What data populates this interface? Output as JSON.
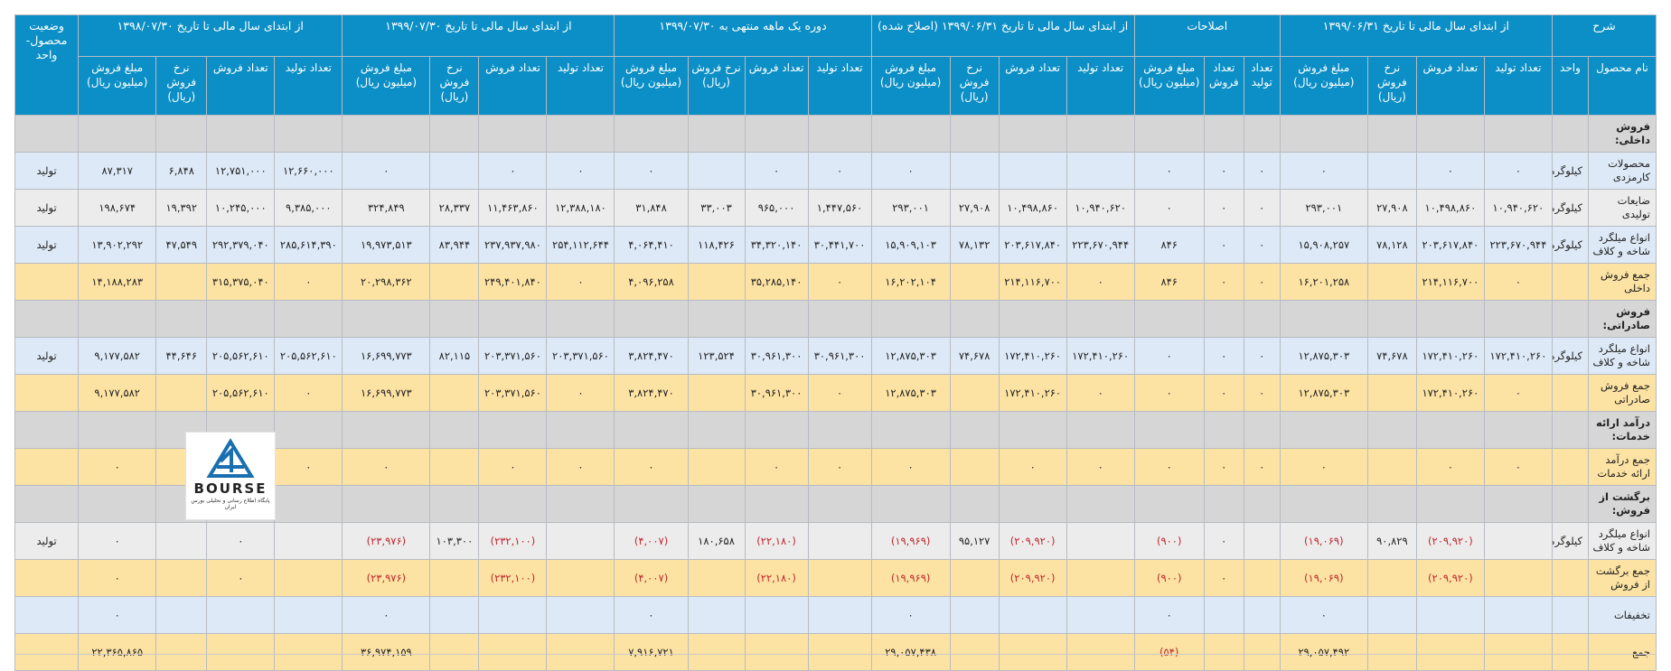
{
  "header_groups": [
    "شرح",
    "از ابتدای سال مالی تا تاریخ ۱۳۹۹/۰۶/۳۱",
    "اصلاحات",
    "از ابتدای سال مالی تا تاریخ ۱۳۹۹/۰۶/۳۱ (اصلاح شده)",
    "دوره یک ماهه منتهی به ۱۳۹۹/۰۷/۳۰",
    "از ابتدای سال مالی تا تاریخ ۱۳۹۹/۰۷/۳۰",
    "از ابتدای سال مالی تا تاریخ ۱۳۹۸/۰۷/۳۰",
    "وضعیت محصول- واحد"
  ],
  "sub_headers": [
    "نام محصول",
    "واحد",
    "تعداد تولید",
    "تعداد فروش",
    "نرخ فروش (ریال)",
    "مبلغ فروش (میلیون ریال)",
    "تعداد تولید",
    "تعداد فروش",
    "مبلغ فروش (میلیون ریال)",
    "تعداد تولید",
    "تعداد فروش",
    "نرخ فروش (ریال)",
    "مبلغ فروش (میلیون ریال)",
    "تعداد تولید",
    "تعداد فروش",
    "نرخ فروش (ریال)",
    "مبلغ فروش (میلیون ریال)",
    "تعداد تولید",
    "تعداد فروش",
    "نرخ فروش (ریال)",
    "مبلغ فروش (میلیون ریال)",
    "تعداد تولید",
    "تعداد فروش",
    "نرخ فروش (ریال)",
    "مبلغ فروش (میلیون ریال)"
  ],
  "rows": [
    {
      "style": "gray",
      "cells": [
        "فروش داخلی:",
        "",
        "",
        "",
        "",
        "",
        "",
        "",
        "",
        "",
        "",
        "",
        "",
        "",
        "",
        "",
        "",
        "",
        "",
        "",
        "",
        "",
        "",
        "",
        "",
        "",
        ""
      ]
    },
    {
      "style": "blue",
      "cells": [
        "محصولات کارمزدی",
        "کیلوگرم",
        "۰",
        "۰",
        "",
        "۰",
        "۰",
        "۰",
        "۰",
        "",
        "",
        "",
        "۰",
        "۰",
        "۰",
        "",
        "۰",
        "۰",
        "۰",
        "",
        "۰",
        "۱۲,۶۶۰,۰۰۰",
        "۱۲,۷۵۱,۰۰۰",
        "۶,۸۴۸",
        "۸۷,۳۱۷",
        "تولید"
      ]
    },
    {
      "style": "lgray",
      "cells": [
        "ضایعات تولیدی",
        "کیلوگرم",
        "۱۰,۹۴۰,۶۲۰",
        "۱۰,۴۹۸,۸۶۰",
        "۲۷,۹۰۸",
        "۲۹۳,۰۰۱",
        "۰",
        "۰",
        "۰",
        "۱۰,۹۴۰,۶۲۰",
        "۱۰,۴۹۸,۸۶۰",
        "۲۷,۹۰۸",
        "۲۹۳,۰۰۱",
        "۱,۴۴۷,۵۶۰",
        "۹۶۵,۰۰۰",
        "۳۳,۰۰۳",
        "۳۱,۸۴۸",
        "۱۲,۳۸۸,۱۸۰",
        "۱۱,۴۶۳,۸۶۰",
        "۲۸,۳۳۷",
        "۳۲۴,۸۴۹",
        "۹,۳۸۵,۰۰۰",
        "۱۰,۲۴۵,۰۰۰",
        "۱۹,۳۹۲",
        "۱۹۸,۶۷۴",
        "تولید"
      ]
    },
    {
      "style": "blue",
      "cells": [
        "انواع میلگرد شاخه و کلاف",
        "کیلوگرم",
        "۲۲۳,۶۷۰,۹۴۴",
        "۲۰۳,۶۱۷,۸۴۰",
        "۷۸,۱۲۸",
        "۱۵,۹۰۸,۲۵۷",
        "۰",
        "۰",
        "۸۴۶",
        "۲۲۳,۶۷۰,۹۴۴",
        "۲۰۳,۶۱۷,۸۴۰",
        "۷۸,۱۳۲",
        "۱۵,۹۰۹,۱۰۳",
        "۳۰,۴۴۱,۷۰۰",
        "۳۴,۳۲۰,۱۴۰",
        "۱۱۸,۴۲۶",
        "۴,۰۶۴,۴۱۰",
        "۲۵۴,۱۱۲,۶۴۴",
        "۲۳۷,۹۳۷,۹۸۰",
        "۸۳,۹۴۴",
        "۱۹,۹۷۳,۵۱۳",
        "۲۸۵,۶۱۴,۳۹۰",
        "۲۹۲,۳۷۹,۰۴۰",
        "۴۷,۵۴۹",
        "۱۳,۹۰۲,۲۹۲",
        "تولید"
      ]
    },
    {
      "style": "yellow",
      "cells": [
        "جمع فروش داخلی",
        "",
        "۰",
        "۲۱۴,۱۱۶,۷۰۰",
        "",
        "۱۶,۲۰۱,۲۵۸",
        "۰",
        "۰",
        "۸۴۶",
        "۰",
        "۲۱۴,۱۱۶,۷۰۰",
        "",
        "۱۶,۲۰۲,۱۰۴",
        "۰",
        "۳۵,۲۸۵,۱۴۰",
        "",
        "۴,۰۹۶,۲۵۸",
        "۰",
        "۲۴۹,۴۰۱,۸۴۰",
        "",
        "۲۰,۲۹۸,۳۶۲",
        "۰",
        "۳۱۵,۳۷۵,۰۴۰",
        "",
        "۱۴,۱۸۸,۲۸۳",
        ""
      ]
    },
    {
      "style": "gray",
      "cells": [
        "فروش صادراتی:",
        "",
        "",
        "",
        "",
        "",
        "",
        "",
        "",
        "",
        "",
        "",
        "",
        "",
        "",
        "",
        "",
        "",
        "",
        "",
        "",
        "",
        "",
        "",
        "",
        ""
      ]
    },
    {
      "style": "blue",
      "cells": [
        "انواع میلگرد شاخه و کلاف",
        "کیلوگرم",
        "۱۷۲,۴۱۰,۲۶۰",
        "۱۷۲,۴۱۰,۲۶۰",
        "۷۴,۶۷۸",
        "۱۲,۸۷۵,۳۰۳",
        "۰",
        "۰",
        "۰",
        "۱۷۲,۴۱۰,۲۶۰",
        "۱۷۲,۴۱۰,۲۶۰",
        "۷۴,۶۷۸",
        "۱۲,۸۷۵,۳۰۳",
        "۳۰,۹۶۱,۳۰۰",
        "۳۰,۹۶۱,۳۰۰",
        "۱۲۳,۵۲۴",
        "۳,۸۲۴,۴۷۰",
        "۲۰۳,۳۷۱,۵۶۰",
        "۲۰۳,۳۷۱,۵۶۰",
        "۸۲,۱۱۵",
        "۱۶,۶۹۹,۷۷۳",
        "۲۰۵,۵۶۲,۶۱۰",
        "۲۰۵,۵۶۲,۶۱۰",
        "۴۴,۶۴۶",
        "۹,۱۷۷,۵۸۲",
        "تولید"
      ]
    },
    {
      "style": "yellow",
      "cells": [
        "جمع فروش صادراتی",
        "",
        "۰",
        "۱۷۲,۴۱۰,۲۶۰",
        "",
        "۱۲,۸۷۵,۳۰۳",
        "۰",
        "۰",
        "۰",
        "۰",
        "۱۷۲,۴۱۰,۲۶۰",
        "",
        "۱۲,۸۷۵,۳۰۳",
        "۰",
        "۳۰,۹۶۱,۳۰۰",
        "",
        "۳,۸۲۴,۴۷۰",
        "۰",
        "۲۰۳,۳۷۱,۵۶۰",
        "",
        "۱۶,۶۹۹,۷۷۳",
        "۰",
        "۲۰۵,۵۶۲,۶۱۰",
        "",
        "۹,۱۷۷,۵۸۲",
        ""
      ]
    },
    {
      "style": "gray",
      "cells": [
        "درآمد ارائه خدمات:",
        "",
        "",
        "",
        "",
        "",
        "",
        "",
        "",
        "",
        "",
        "",
        "",
        "",
        "",
        "",
        "",
        "",
        "",
        "",
        "",
        "",
        "",
        "",
        "",
        ""
      ]
    },
    {
      "style": "yellow",
      "cells": [
        "جمع درآمد ارائه خدمات",
        "",
        "۰",
        "۰",
        "",
        "۰",
        "۰",
        "۰",
        "۰",
        "۰",
        "۰",
        "",
        "۰",
        "۰",
        "۰",
        "",
        "۰",
        "۰",
        "۰",
        "",
        "۰",
        "۰",
        "۰",
        "",
        "۰",
        ""
      ]
    },
    {
      "style": "gray",
      "cells": [
        "برگشت از فروش:",
        "",
        "",
        "",
        "",
        "",
        "",
        "",
        "",
        "",
        "",
        "",
        "",
        "",
        "",
        "",
        "",
        "",
        "",
        "",
        "",
        "",
        "",
        "",
        "",
        ""
      ]
    },
    {
      "style": "lgray",
      "cells": [
        "انواع میلگرد شاخه و کلاف",
        "کیلوگرم",
        "",
        "(۲۰۹,۹۲۰)",
        "۹۰,۸۲۹",
        "(۱۹,۰۶۹)",
        "",
        "۰",
        "(۹۰۰)",
        "",
        "(۲۰۹,۹۲۰)",
        "۹۵,۱۲۷",
        "(۱۹,۹۶۹)",
        "",
        "(۲۲,۱۸۰)",
        "۱۸۰,۶۵۸",
        "(۴,۰۰۷)",
        "",
        "(۲۳۲,۱۰۰)",
        "۱۰۳,۳۰۰",
        "(۲۳,۹۷۶)",
        "",
        "۰",
        "",
        "۰",
        "تولید"
      ]
    },
    {
      "style": "yellow",
      "cells": [
        "جمع برگشت از فروش",
        "",
        "",
        "(۲۰۹,۹۲۰)",
        "",
        "(۱۹,۰۶۹)",
        "",
        "۰",
        "(۹۰۰)",
        "",
        "(۲۰۹,۹۲۰)",
        "",
        "(۱۹,۹۶۹)",
        "",
        "(۲۲,۱۸۰)",
        "",
        "(۴,۰۰۷)",
        "",
        "(۲۳۲,۱۰۰)",
        "",
        "(۲۳,۹۷۶)",
        "",
        "۰",
        "",
        "۰",
        ""
      ]
    },
    {
      "style": "blue",
      "cells": [
        "تخفیفات",
        "",
        "",
        "",
        "",
        "۰",
        "",
        "",
        "۰",
        "",
        "",
        "",
        "۰",
        "",
        "",
        "",
        "۰",
        "",
        "",
        "",
        "۰",
        "",
        "",
        "",
        "۰",
        ""
      ]
    },
    {
      "style": "yellow",
      "cells": [
        "جمع",
        "",
        "",
        "",
        "",
        "۲۹,۰۵۷,۴۹۲",
        "",
        "",
        "(۵۴)",
        "",
        "",
        "",
        "۲۹,۰۵۷,۴۳۸",
        "",
        "",
        "",
        "۷,۹۱۶,۷۲۱",
        "",
        "",
        "",
        "۳۶,۹۷۴,۱۵۹",
        "",
        "",
        "",
        "۲۲,۳۶۵,۸۶۵",
        ""
      ]
    }
  ],
  "logo": {
    "brand": "BOURSE",
    "tagline": "پایگاه اطلاع رسانی و تحلیلی بورس ایران"
  }
}
